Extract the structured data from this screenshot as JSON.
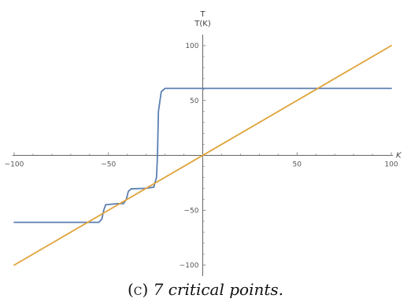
{
  "chart_data": {
    "type": "line",
    "xlim": [
      -100,
      100
    ],
    "ylim": [
      -100,
      100
    ],
    "x_ticks": [
      -100,
      -50,
      50,
      100
    ],
    "y_ticks": [
      -100,
      -50,
      50,
      100
    ],
    "x_tick_labels": [
      "−100",
      "−50",
      "50",
      "100"
    ],
    "y_tick_labels": [
      "−100",
      "−50",
      "50",
      "100"
    ],
    "xlabel": "K",
    "ylabel_top": "T",
    "ylabel": "T(K)",
    "grid": false,
    "series": [
      {
        "color": "#5b7fb1",
        "x": [
          -100,
          -55,
          -53.5,
          -52.5,
          -51.5,
          -45,
          -42,
          -40.5,
          -39.5,
          -38,
          -30,
          -26,
          -24.5,
          -24,
          -23.5,
          -22,
          -20,
          100
        ],
        "y": [
          -61,
          -61,
          -58,
          -50,
          -45,
          -44,
          -44,
          -40,
          -33,
          -30.5,
          -30,
          -29,
          -20,
          0,
          40,
          58,
          61,
          61
        ]
      },
      {
        "color": "#e0a33a",
        "x": [
          -100,
          100
        ],
        "y": [
          -100,
          100
        ]
      }
    ]
  },
  "caption": {
    "label": "(c)",
    "text": "7 critical points."
  }
}
